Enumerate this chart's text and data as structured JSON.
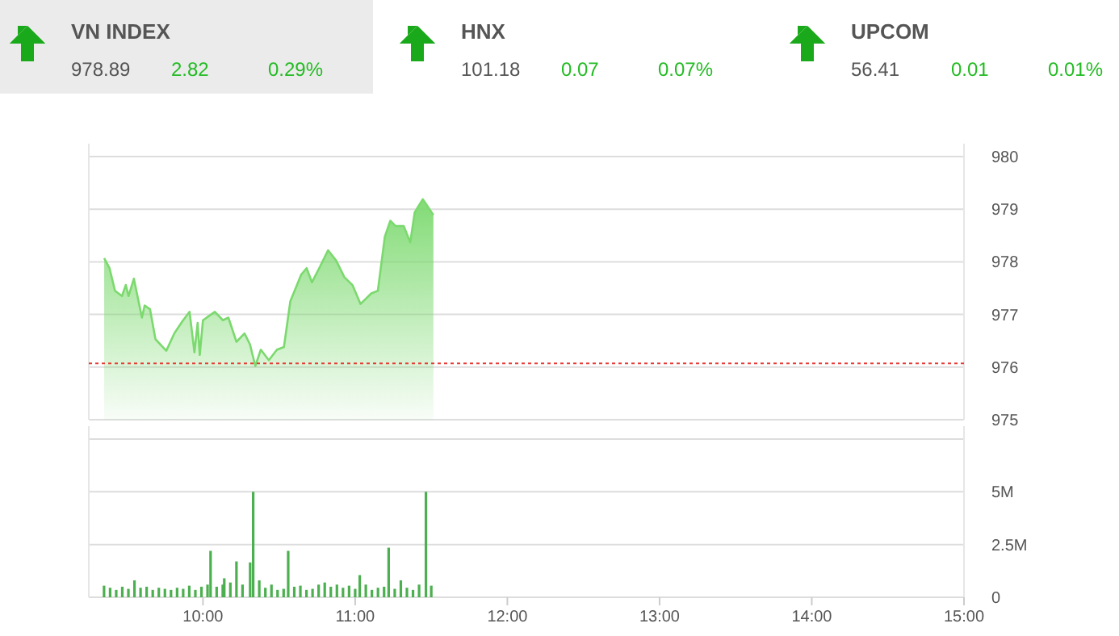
{
  "chart_data": [
    {
      "type": "other",
      "annotations": [
        "VN INDEX",
        "978.89",
        "2.82",
        "0.29%",
        "HNX",
        "101.18",
        "0.07",
        "0.07%",
        "UPCOM",
        "56.41",
        "0.01",
        "0.01%"
      ]
    },
    {
      "type": "area",
      "xlim": [
        9.25,
        15
      ],
      "ylim": [
        975,
        980
      ],
      "yticks": [
        975,
        976,
        977,
        978,
        979,
        980
      ],
      "grid": "y",
      "tick_labels": "y",
      "ref_lines": [
        {
          "axis": "y",
          "value": 976.07,
          "color": "#e53935",
          "line_style": "dotted"
        }
      ],
      "series": [
        {
          "color": "#7bd96e",
          "x": [
            9.351,
            9.386,
            9.422,
            9.468,
            9.493,
            9.511,
            9.546,
            9.599,
            9.617,
            9.652,
            9.688,
            9.759,
            9.812,
            9.865,
            9.912,
            9.944,
            9.965,
            9.979,
            10.0,
            10.078,
            10.131,
            10.167,
            10.22,
            10.273,
            10.309,
            10.344,
            10.38,
            10.433,
            10.486,
            10.532,
            10.574,
            10.646,
            10.681,
            10.716,
            10.769,
            10.822,
            10.876,
            10.929,
            10.982,
            11.035,
            11.106,
            11.149,
            11.195,
            11.231,
            11.266,
            11.319,
            11.362,
            11.391,
            11.444,
            11.479,
            11.514
          ],
          "values": [
            978.07,
            977.88,
            977.45,
            977.35,
            977.56,
            977.35,
            977.68,
            976.94,
            977.17,
            977.1,
            976.53,
            976.31,
            976.64,
            976.87,
            977.05,
            976.28,
            976.84,
            976.23,
            976.89,
            977.05,
            976.89,
            976.94,
            976.48,
            976.64,
            976.43,
            976.02,
            976.33,
            976.13,
            976.33,
            976.38,
            977.25,
            977.76,
            977.88,
            977.61,
            977.91,
            978.22,
            978.02,
            977.71,
            977.56,
            977.2,
            977.4,
            977.45,
            978.48,
            978.78,
            978.68,
            978.68,
            978.37,
            978.94,
            979.19,
            979.04,
            978.89
          ]
        }
      ]
    },
    {
      "type": "bar",
      "xlim": [
        9.25,
        15
      ],
      "ylim": [
        0,
        7.5
      ],
      "yticks": [
        {
          "value": 0,
          "label": "0"
        },
        {
          "value": 2.5,
          "label": "2.5M"
        },
        {
          "value": 5,
          "label": "5M"
        },
        {
          "value": 7.5,
          "label": null
        }
      ],
      "xticks": [
        {
          "value": 10,
          "label": "10:00"
        },
        {
          "value": 11,
          "label": "11:00"
        },
        {
          "value": 12,
          "label": "12:00"
        },
        {
          "value": 13,
          "label": "13:00"
        },
        {
          "value": 14,
          "label": "14:00"
        },
        {
          "value": 15,
          "label": "15:00"
        }
      ],
      "grid": "y",
      "series": [
        {
          "color": "#4caf50",
          "x": [
            9.35,
            9.39,
            9.43,
            9.47,
            9.51,
            9.55,
            9.59,
            9.63,
            9.67,
            9.71,
            9.75,
            9.79,
            9.83,
            9.87,
            9.91,
            9.95,
            9.99,
            10.03,
            10.05,
            10.09,
            10.13,
            10.14,
            10.18,
            10.22,
            10.26,
            10.31,
            10.33,
            10.37,
            10.41,
            10.45,
            10.49,
            10.53,
            10.56,
            10.6,
            10.64,
            10.68,
            10.72,
            10.76,
            10.8,
            10.84,
            10.88,
            10.92,
            10.96,
            11.0,
            11.03,
            11.07,
            11.11,
            11.15,
            11.19,
            11.22,
            11.26,
            11.3,
            11.34,
            11.38,
            11.42,
            11.465,
            11.5
          ],
          "values": [
            0.55,
            0.45,
            0.35,
            0.5,
            0.4,
            0.8,
            0.45,
            0.5,
            0.35,
            0.45,
            0.4,
            0.35,
            0.45,
            0.4,
            0.55,
            0.35,
            0.5,
            0.6,
            2.2,
            0.5,
            0.6,
            0.9,
            0.7,
            1.7,
            0.6,
            1.65,
            5.0,
            0.8,
            0.45,
            0.6,
            0.35,
            0.4,
            2.2,
            0.5,
            0.55,
            0.35,
            0.4,
            0.6,
            0.7,
            0.5,
            0.6,
            0.45,
            0.55,
            0.4,
            1.05,
            0.6,
            0.35,
            0.45,
            0.5,
            2.35,
            0.4,
            0.8,
            0.45,
            0.35,
            0.6,
            5.0,
            0.55
          ]
        }
      ]
    }
  ]
}
